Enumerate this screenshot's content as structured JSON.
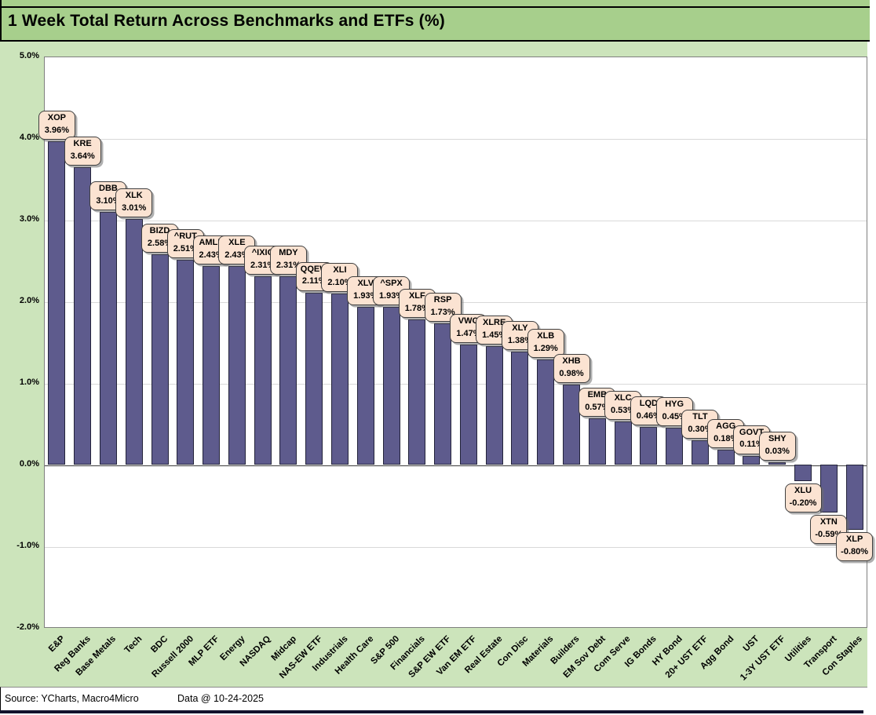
{
  "window": {
    "title_bar": {
      "text": "1 Week Total Return Across Benchmarks and ETFs (%)"
    }
  },
  "footer": {
    "source": "Source: YCharts, Macro4Micro",
    "data_date": "Data @ 10-24-2025"
  },
  "colors": {
    "title_bg": "#a7cf8c",
    "body_bg": "#cce4bb",
    "plot_bg": "#ffffff",
    "bar_fill": "#5e5b8d",
    "bar_border": "#23233a",
    "callout_bg": "#fbe3d2",
    "callout_border": "#404040",
    "gridline": "#d9d9d9",
    "zero_line": "#3a3a3a",
    "bottom_bar": "#12122c"
  },
  "chart_data": {
    "type": "bar",
    "title": "1 Week Total Return Across Benchmarks and ETFs (%)",
    "xlabel": "",
    "ylabel": "",
    "ylim": [
      -2.0,
      5.0
    ],
    "yticks": [
      5.0,
      4.0,
      3.0,
      2.0,
      1.0,
      0.0,
      -1.0,
      -2.0
    ],
    "ytick_labels": [
      "5.0%",
      "4.0%",
      "3.0%",
      "2.0%",
      "1.0%",
      "0.0%",
      "-1.0%",
      "-2.0%"
    ],
    "grid": true,
    "legend_position": "none",
    "categories": [
      "E&P",
      "Reg Banks",
      "Base Metals",
      "Tech",
      "BDC",
      "Russell 2000",
      "MLP ETF",
      "Energy",
      "NASDAQ",
      "Midcap",
      "NAS-EW ETF",
      "Industrials",
      "Health Care",
      "S&P 500",
      "Financials",
      "S&P EW ETF",
      "Van EM ETF",
      "Real Estate",
      "Con Disc",
      "Materials",
      "Builders",
      "EM Sov Debt",
      "Com Serve",
      "IG Bonds",
      "HY Bond",
      "20+ UST ETF",
      "Agg Bond",
      "UST",
      "1-3Y UST ETF",
      "Utilities",
      "Transport",
      "Con Staples"
    ],
    "series": [
      {
        "name": "1 Week Total Return (%)",
        "tickers": [
          "XOP",
          "KRE",
          "DBB",
          "XLK",
          "BIZD",
          "^RUT",
          "AMLP",
          "XLE",
          "^IXIC",
          "MDY",
          "QQEW",
          "XLI",
          "XLV",
          "^SPX",
          "XLF",
          "RSP",
          "VWO",
          "XLRE",
          "XLY",
          "XLB",
          "XHB",
          "EMB",
          "XLC",
          "LQD",
          "HYG",
          "TLT",
          "AGG",
          "GOVT",
          "SHY",
          "XLU",
          "XTN",
          "XLP"
        ],
        "values": [
          3.96,
          3.64,
          3.1,
          3.01,
          2.58,
          2.51,
          2.43,
          2.43,
          2.31,
          2.31,
          2.11,
          2.1,
          1.93,
          1.93,
          1.78,
          1.73,
          1.47,
          1.45,
          1.38,
          1.29,
          0.98,
          0.57,
          0.53,
          0.46,
          0.45,
          0.3,
          0.18,
          0.11,
          0.03,
          -0.2,
          -0.59,
          -0.8
        ],
        "value_labels": [
          "3.96%",
          "3.64%",
          "3.10%",
          "3.01%",
          "2.58%",
          "2.51%",
          "2.43%",
          "2.43%",
          "2.31%",
          "2.31%",
          "2.11%",
          "2.10%",
          "1.93%",
          "1.93%",
          "1.78%",
          "1.73%",
          "1.47%",
          "1.45%",
          "1.38%",
          "1.29%",
          "0.98%",
          "0.57%",
          "0.53%",
          "0.46%",
          "0.45%",
          "0.30%",
          "0.18%",
          "0.11%",
          "0.03%",
          "-0.20%",
          "-0.59%",
          "-0.80%"
        ]
      }
    ]
  }
}
